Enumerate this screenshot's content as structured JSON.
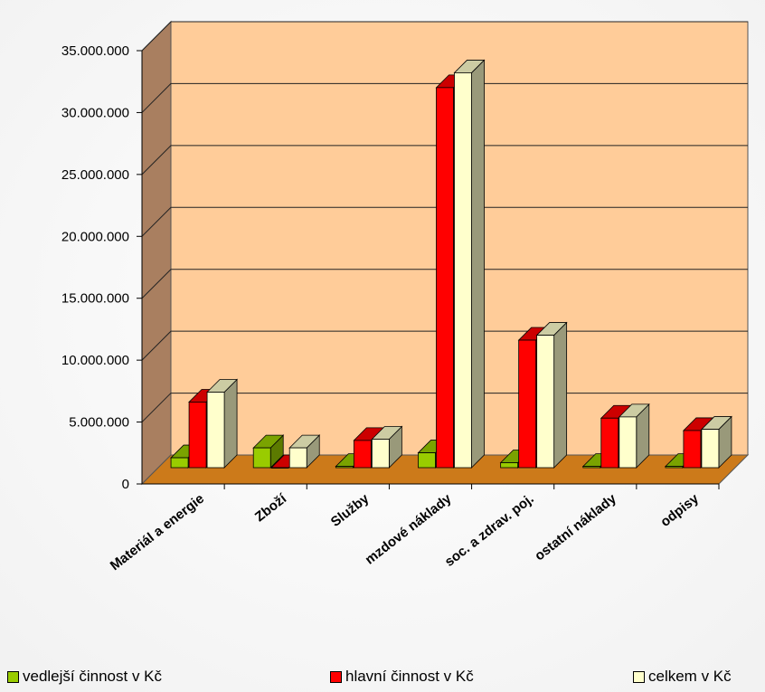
{
  "chart_data": {
    "type": "bar",
    "categories": [
      "Materiál a energie",
      "Zboží",
      "Služby",
      "mzdové náklady",
      "soc. a zdrav. poj.",
      "ostatní náklady",
      "odpisy"
    ],
    "series": [
      {
        "name": "vedlejší činnost v Kč",
        "color": "#99cc00",
        "values": [
          800000,
          1600000,
          100000,
          1200000,
          400000,
          100000,
          100000
        ]
      },
      {
        "name": "hlavní činnost v Kč",
        "color": "#ff0000",
        "values": [
          5300000,
          0,
          2200000,
          30700000,
          10300000,
          4000000,
          3000000
        ]
      },
      {
        "name": "celkem v Kč",
        "color": "#ffffcc",
        "values": [
          6100000,
          1600000,
          2300000,
          31900000,
          10700000,
          4100000,
          3100000
        ]
      }
    ],
    "ylim": [
      0,
      35000000
    ],
    "y_ticks": [
      "0",
      "5.000.000",
      "10.000.000",
      "15.000.000",
      "20.000.000",
      "25.000.000",
      "30.000.000",
      "35.000.000"
    ],
    "xlabel": "",
    "ylabel": "",
    "grid": true,
    "legend_position": "bottom"
  }
}
